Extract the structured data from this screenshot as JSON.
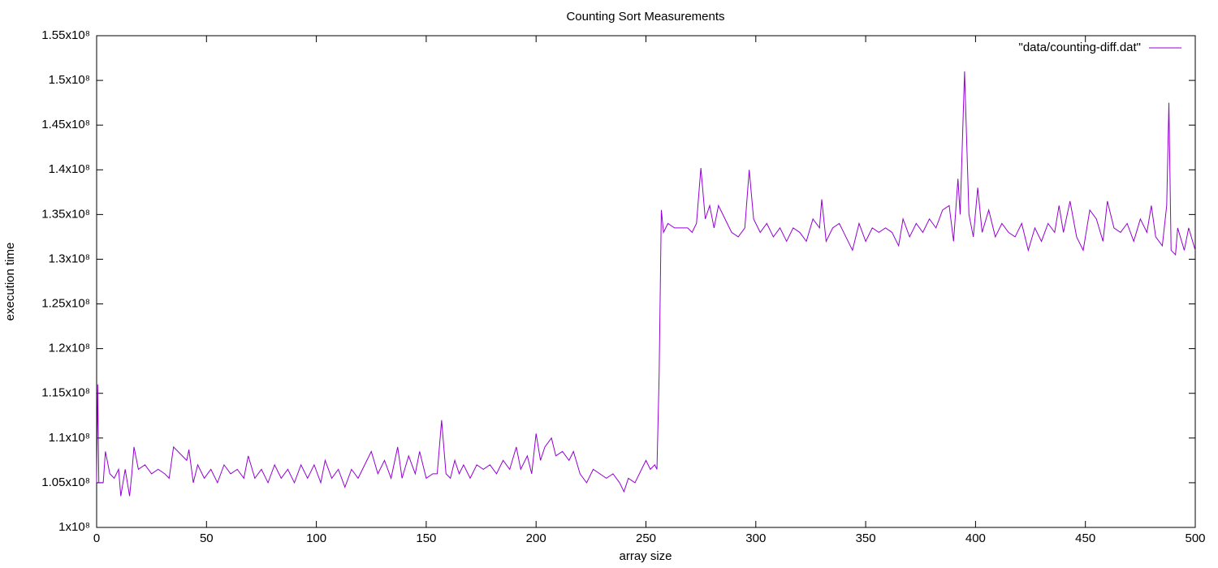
{
  "chart_data": {
    "type": "line",
    "title": "Counting Sort Measurements",
    "x_label": "array size",
    "y_label": "execution time",
    "legend_position": "top-right",
    "series": [
      {
        "name": "\"data/counting-diff.dat\"",
        "color": "#9400d3",
        "x": [
          0,
          0.5,
          1,
          3,
          4,
          6,
          8,
          10,
          11,
          13,
          15,
          16,
          17,
          19,
          22,
          25,
          28,
          31,
          33,
          35,
          37,
          39,
          41,
          42,
          44,
          46,
          49,
          52,
          55,
          58,
          61,
          64,
          67,
          69,
          72,
          75,
          78,
          81,
          84,
          87,
          90,
          93,
          96,
          99,
          102,
          104,
          107,
          110,
          113,
          116,
          119,
          122,
          125,
          128,
          131,
          134,
          137,
          139,
          142,
          145,
          147,
          150,
          153,
          155,
          157,
          159,
          161,
          163,
          165,
          167,
          170,
          173,
          176,
          179,
          182,
          185,
          188,
          191,
          193,
          196,
          198,
          200,
          202,
          204,
          207,
          209,
          212,
          215,
          217,
          220,
          223,
          226,
          229,
          232,
          235,
          238,
          240,
          242,
          245,
          248,
          250,
          252,
          254,
          255,
          256,
          257,
          258,
          260,
          263,
          266,
          269,
          271,
          273,
          275,
          277,
          279,
          281,
          283,
          286,
          289,
          292,
          295,
          297,
          299,
          302,
          305,
          308,
          311,
          314,
          317,
          320,
          323,
          326,
          329,
          330,
          332,
          335,
          338,
          341,
          344,
          347,
          350,
          353,
          356,
          359,
          362,
          365,
          367,
          370,
          373,
          376,
          379,
          382,
          385,
          388,
          390,
          392,
          393,
          395,
          397,
          399,
          401,
          403,
          406,
          409,
          412,
          415,
          418,
          421,
          424,
          427,
          430,
          433,
          436,
          438,
          440,
          443,
          446,
          449,
          452,
          455,
          458,
          460,
          463,
          466,
          469,
          472,
          475,
          478,
          480,
          482,
          485,
          487,
          488,
          489,
          491,
          492,
          495,
          497,
          500
        ],
        "values": [
          105000000.0,
          116000000.0,
          105000000.0,
          105000000.0,
          108500000.0,
          106000000.0,
          105500000.0,
          106500000.0,
          103500000.0,
          106500000.0,
          103500000.0,
          106000000.0,
          109000000.0,
          106500000.0,
          107000000.0,
          106000000.0,
          106500000.0,
          106000000.0,
          105500000.0,
          109000000.0,
          108500000.0,
          108000000.0,
          107500000.0,
          108700000.0,
          105000000.0,
          107000000.0,
          105500000.0,
          106500000.0,
          105000000.0,
          107000000.0,
          106000000.0,
          106500000.0,
          105500000.0,
          108000000.0,
          105500000.0,
          106500000.0,
          105000000.0,
          107000000.0,
          105500000.0,
          106500000.0,
          105000000.0,
          107000000.0,
          105500000.0,
          107000000.0,
          105000000.0,
          107500000.0,
          105500000.0,
          106500000.0,
          104500000.0,
          106500000.0,
          105500000.0,
          107000000.0,
          108500000.0,
          106000000.0,
          107500000.0,
          105500000.0,
          109000000.0,
          105500000.0,
          108000000.0,
          106000000.0,
          108500000.0,
          105500000.0,
          106000000.0,
          106000000.0,
          112000000.0,
          106000000.0,
          105500000.0,
          107500000.0,
          106000000.0,
          107000000.0,
          105500000.0,
          107000000.0,
          106500000.0,
          107000000.0,
          106000000.0,
          107500000.0,
          106500000.0,
          109000000.0,
          106500000.0,
          108000000.0,
          106000000.0,
          110500000.0,
          107500000.0,
          109000000.0,
          110000000.0,
          108000000.0,
          108500000.0,
          107500000.0,
          108500000.0,
          106000000.0,
          105000000.0,
          106500000.0,
          106000000.0,
          105500000.0,
          106000000.0,
          105000000.0,
          104000000.0,
          105500000.0,
          105000000.0,
          106500000.0,
          107500000.0,
          106500000.0,
          107000000.0,
          106500000.0,
          117000000.0,
          135500000.0,
          133000000.0,
          134000000.0,
          133500000.0,
          133500000.0,
          133500000.0,
          133000000.0,
          134000000.0,
          140200000.0,
          134500000.0,
          136000000.0,
          133500000.0,
          136000000.0,
          134500000.0,
          133000000.0,
          132500000.0,
          133500000.0,
          140000000.0,
          134500000.0,
          133000000.0,
          134000000.0,
          132500000.0,
          133500000.0,
          132000000.0,
          133500000.0,
          133000000.0,
          132000000.0,
          134500000.0,
          133500000.0,
          136700000.0,
          132000000.0,
          133500000.0,
          134000000.0,
          132500000.0,
          131000000.0,
          134000000.0,
          132000000.0,
          133500000.0,
          133000000.0,
          133500000.0,
          133000000.0,
          131500000.0,
          134500000.0,
          132500000.0,
          134000000.0,
          133000000.0,
          134500000.0,
          133500000.0,
          135500000.0,
          136000000.0,
          132000000.0,
          139000000.0,
          135000000.0,
          151000000.0,
          135000000.0,
          132500000.0,
          138000000.0,
          133000000.0,
          135500000.0,
          132500000.0,
          134000000.0,
          133000000.0,
          132500000.0,
          134000000.0,
          131000000.0,
          133500000.0,
          132000000.0,
          134000000.0,
          133000000.0,
          136000000.0,
          133000000.0,
          136500000.0,
          132500000.0,
          131000000.0,
          135500000.0,
          134500000.0,
          132000000.0,
          136500000.0,
          133500000.0,
          133000000.0,
          134000000.0,
          132000000.0,
          134500000.0,
          133000000.0,
          136000000.0,
          132500000.0,
          131500000.0,
          136000000.0,
          147500000.0,
          131000000.0,
          130500000.0,
          133500000.0,
          131000000.0,
          133500000.0,
          131000000.0
        ]
      }
    ],
    "xlim": [
      0,
      500
    ],
    "xticks": [
      0,
      50,
      100,
      150,
      200,
      250,
      300,
      350,
      400,
      450,
      500
    ],
    "ylim": [
      100000000,
      155000000
    ],
    "yticks": [
      {
        "value": 100000000,
        "label": "1x10⁸"
      },
      {
        "value": 105000000,
        "label": "1.05x10⁸"
      },
      {
        "value": 110000000,
        "label": "1.1x10⁸"
      },
      {
        "value": 115000000,
        "label": "1.15x10⁸"
      },
      {
        "value": 120000000,
        "label": "1.2x10⁸"
      },
      {
        "value": 125000000,
        "label": "1.25x10⁸"
      },
      {
        "value": 130000000,
        "label": "1.3x10⁸"
      },
      {
        "value": 135000000,
        "label": "1.35x10⁸"
      },
      {
        "value": 140000000,
        "label": "1.4x10⁸"
      },
      {
        "value": 145000000,
        "label": "1.45x10⁸"
      },
      {
        "value": 150000000,
        "label": "1.5x10⁸"
      },
      {
        "value": 155000000,
        "label": "1.55x10⁸"
      }
    ],
    "grid": false
  }
}
